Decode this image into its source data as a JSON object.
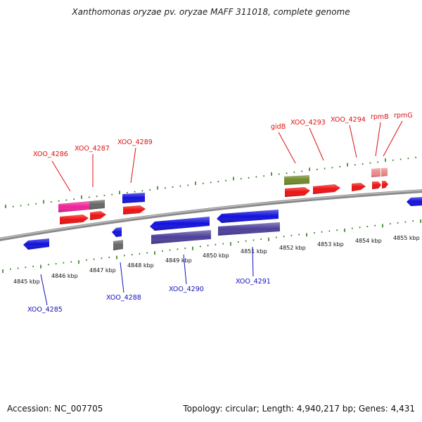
{
  "title": "Xanthomonas oryzae pv. oryzae MAFF 311018, complete genome",
  "footer": {
    "accession": "Accession: NC_007705",
    "topology": "Topology: circular; Length: 4,940,217 bp; Genes: 4,431"
  },
  "colors": {
    "backbone": "#8a8a8a",
    "tick": "#2e7d1e",
    "label_top": "#dd1111",
    "label_bottom": "#1111bb",
    "gene_red": "#ee1111",
    "gene_blue": "#1111dd",
    "gene_navy": "#4b3f9a",
    "gene_pink": "#ee2299",
    "gene_gray": "#666666",
    "gene_olive": "#6f8a2a",
    "gene_salmon": "#ee8888"
  },
  "scale": {
    "unit": "kbp",
    "labels": [
      "4845 kbp",
      "4846 kbp",
      "4847 kbp",
      "4848 kbp",
      "4849 kbp",
      "4850 kbp",
      "4851 kbp",
      "4852 kbp",
      "4853 kbp",
      "4854 kbp",
      "4855 kbp"
    ]
  },
  "gene_labels_top": [
    "XOO_4286",
    "XOO_4287",
    "XOO_4289",
    "gidB",
    "XOO_4293",
    "XOO_4294",
    "rpmB",
    "rpmG"
  ],
  "gene_labels_bottom": [
    "XOO_4285",
    "XOO_4288",
    "XOO_4290",
    "XOO_4291"
  ]
}
